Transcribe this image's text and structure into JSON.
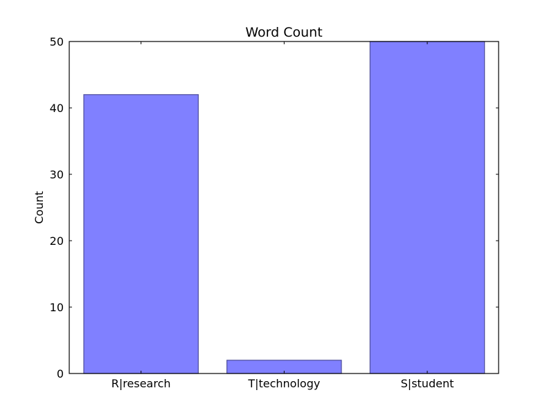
{
  "chart_data": {
    "type": "bar",
    "title": "Word Count",
    "xlabel": "",
    "ylabel": "Count",
    "categories": [
      "R|research",
      "T|technology",
      "S|student"
    ],
    "values": [
      42,
      2,
      50
    ],
    "ylim": [
      0,
      50
    ],
    "yticks": [
      0,
      10,
      20,
      30,
      40,
      50
    ],
    "grid": false,
    "legend": "none",
    "bar_color": "#8080ff",
    "bar_edge_color": "#4d4d99"
  }
}
